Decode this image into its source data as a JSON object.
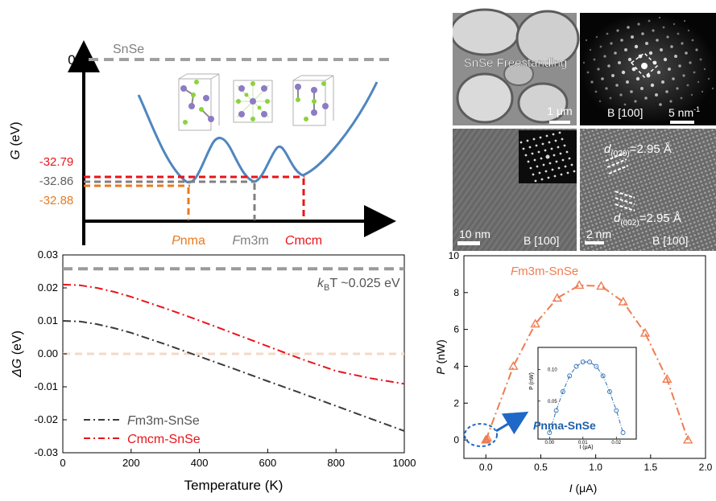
{
  "chart_data": [
    {
      "type": "energy-landscape",
      "ylabel_symbol": "G",
      "ylabel_unit": " (eV)",
      "reference_label": "SnSe",
      "zero_label": "0",
      "levels": [
        {
          "label": "-32.79",
          "phase_first": "C",
          "phase_rest": "mcm",
          "value": -32.79,
          "color": "#e8141a"
        },
        {
          "label": "-32.86",
          "phase_first": "F",
          "phase_rest": "m3m",
          "value": -32.86,
          "color": "#808080"
        },
        {
          "label": "-32.88",
          "phase_first": "P",
          "phase_rest": "nma",
          "value": -32.88,
          "color": "#e87a1f"
        }
      ]
    },
    {
      "type": "line",
      "ylabel_symbol": "ΔG",
      "ylabel_unit": " (eV)",
      "xlabel": "Temperature (K)",
      "xlim": [
        0,
        1000
      ],
      "ylim": [
        -0.03,
        0.03
      ],
      "x_ticks": [
        "0",
        "200",
        "400",
        "600",
        "800",
        "1000"
      ],
      "y_ticks": [
        "0.03",
        "0.02",
        "0.01",
        "0.00",
        "-0.01",
        "-0.02",
        "-0.03"
      ],
      "kbt_line": {
        "value": 0.0258,
        "label_symbol": "k",
        "label_sub": "B",
        "label_rest": "T ~0.025 eV",
        "color": "#9a9a9a"
      },
      "zero_line": {
        "value": 0.0,
        "color": "#f6d9c4"
      },
      "series": [
        {
          "name_first": "F",
          "name_rest": "m3m-SnSe",
          "color": "#3a3a3a",
          "x": [
            0,
            50,
            100,
            150,
            200,
            300,
            400,
            500,
            600,
            700,
            800,
            900,
            1000
          ],
          "y": [
            0.01,
            0.0098,
            0.009,
            0.0078,
            0.0064,
            0.0029,
            -0.0008,
            -0.0045,
            -0.0083,
            -0.012,
            -0.0158,
            -0.0196,
            -0.0234
          ]
        },
        {
          "name_first": "C",
          "name_rest": "mcm-SnSe",
          "color": "#e8141a",
          "x": [
            0,
            50,
            100,
            150,
            200,
            300,
            400,
            500,
            600,
            700,
            800,
            900,
            1000
          ],
          "y": [
            0.021,
            0.0208,
            0.02,
            0.0188,
            0.0173,
            0.0138,
            0.0101,
            0.0062,
            0.0023,
            -0.0016,
            -0.0052,
            -0.0074,
            -0.0091
          ]
        }
      ]
    },
    {
      "type": "line",
      "ylabel_symbol": "P",
      "ylabel_unit": " (nW)",
      "xlabel_symbol": "I",
      "xlabel_unit": " (μA)",
      "xlim": [
        -0.2,
        2.0
      ],
      "ylim": [
        -1,
        10
      ],
      "x_ticks": [
        "0.0",
        "0.5",
        "1.0",
        "1.5",
        "2.0"
      ],
      "y_ticks": [
        "0",
        "2",
        "4",
        "6",
        "8",
        "10"
      ],
      "series": [
        {
          "name_first": "F",
          "name_rest": "m3m-SnSe",
          "color": "#f07c52",
          "marker": "triangle",
          "x": [
            0.0,
            0.25,
            0.45,
            0.65,
            0.85,
            1.05,
            1.25,
            1.45,
            1.65,
            1.84
          ],
          "y": [
            0.0,
            4.0,
            6.3,
            7.7,
            8.4,
            8.35,
            7.5,
            5.8,
            3.3,
            0.0
          ]
        }
      ],
      "inset": {
        "title_first": "P",
        "title_rest": "nma-SnSe",
        "ylabel": "P (nW)",
        "xlabel": "I (μA)",
        "xlim": [
          -0.002,
          0.025
        ],
        "ylim": [
          0,
          0.13
        ],
        "x_ticks": [
          "0.00",
          "0.01",
          "0.02"
        ],
        "y_ticks": [
          "0.05",
          "0.10"
        ],
        "series": [
          {
            "color": "#2d6fb5",
            "marker": "circle",
            "x": [
              0.0,
              0.002,
              0.004,
              0.006,
              0.008,
              0.01,
              0.012,
              0.014,
              0.016,
              0.018,
              0.02,
              0.022
            ],
            "y": [
              0.0,
              0.035,
              0.065,
              0.09,
              0.105,
              0.112,
              0.112,
              0.105,
              0.09,
              0.065,
              0.035,
              0.0
            ]
          }
        ]
      }
    }
  ],
  "micrographs": {
    "top_left": {
      "caption": "SnSe Freestanding",
      "scale": "1 μm"
    },
    "top_right": {
      "zone_axis": "B [100]",
      "scale": "5 nm",
      "scale_sup": "-1"
    },
    "bottom_left": {
      "zone_axis": "B [100]",
      "scale": "10 nm"
    },
    "bottom_right": {
      "zone_axis": "B [100]",
      "scale": "2 nm",
      "d1_sub": "(020)",
      "d1_value": "=2.95 Å",
      "d2_sub": "(002)",
      "d2_value": "=2.95 Å"
    }
  }
}
